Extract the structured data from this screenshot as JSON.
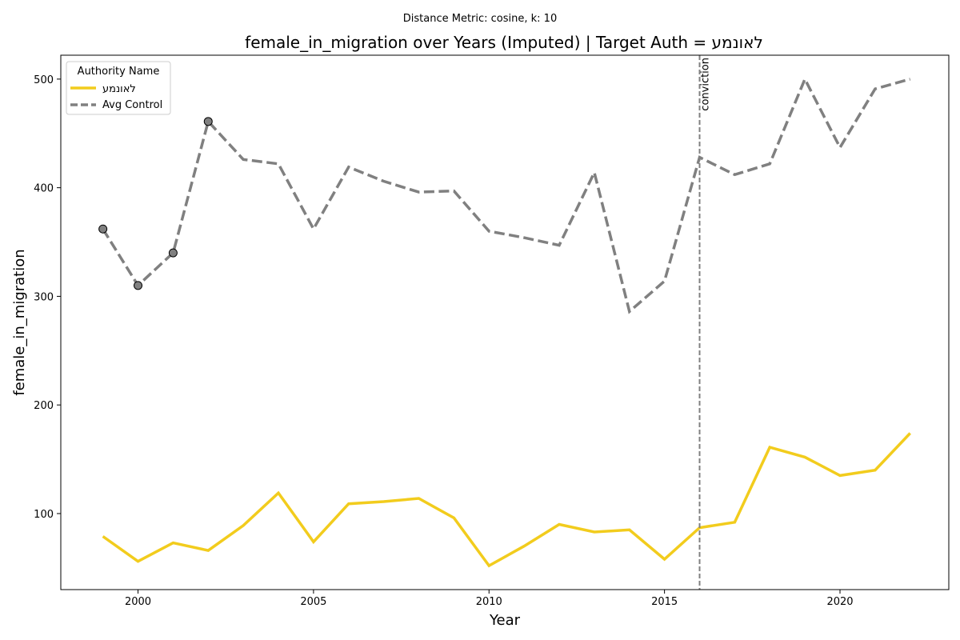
{
  "chart_data": {
    "type": "line",
    "suptitle": "Distance Metric: cosine, k: 10",
    "title": "female_in_migration over Years (Imputed) | Target Auth = לאונמע",
    "xlabel": "Year",
    "ylabel": "female_in_migration",
    "xlim": [
      1997.8,
      2023.1
    ],
    "ylim": [
      30,
      522
    ],
    "xticks": [
      2000,
      2005,
      2010,
      2015,
      2020
    ],
    "yticks": [
      100,
      200,
      300,
      400,
      500
    ],
    "grid": false,
    "legend": {
      "title": "Authority Name",
      "placement": "top-left"
    },
    "x": [
      1999,
      2000,
      2001,
      2002,
      2003,
      2004,
      2005,
      2006,
      2007,
      2008,
      2009,
      2010,
      2011,
      2012,
      2013,
      2014,
      2015,
      2016,
      2017,
      2018,
      2019,
      2020,
      2021,
      2022
    ],
    "series": [
      {
        "name": "לאונמע",
        "color": "#f2cc1d",
        "style": "solid",
        "values": [
          79,
          56,
          73,
          66,
          89,
          119,
          74,
          109,
          111,
          114,
          96,
          52,
          70,
          90,
          83,
          85,
          58,
          87,
          92,
          161,
          152,
          135,
          140,
          174
        ]
      },
      {
        "name": "Avg Control",
        "color": "#808080",
        "style": "dashed",
        "values": [
          362,
          310,
          340,
          461,
          426,
          422,
          362,
          419,
          406,
          396,
          397,
          360,
          354,
          347,
          414,
          286,
          314,
          428,
          412,
          422,
          500,
          437,
          491,
          500
        ],
        "imputed_marker_years": [
          1999,
          2000,
          2001,
          2002
        ]
      }
    ],
    "annotations": [
      {
        "type": "vline",
        "x": 2016,
        "label": "conviction",
        "color": "#808080"
      }
    ]
  }
}
